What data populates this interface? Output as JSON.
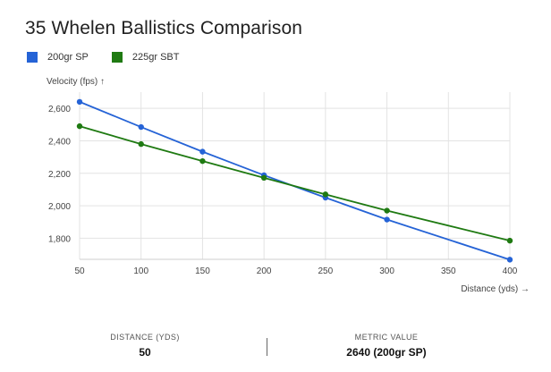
{
  "title": "35 Whelen Ballistics Comparison",
  "legend": [
    {
      "name": "200gr SP",
      "color": "#2563d6"
    },
    {
      "name": "225gr SBT",
      "color": "#1f7a12"
    }
  ],
  "axes": {
    "ylabel": "Velocity (fps) ↑",
    "xlabel": "Distance (yds) →"
  },
  "chart_data": {
    "type": "line",
    "title": "35 Whelen Ballistics Comparison",
    "xlabel": "Distance (yds)",
    "ylabel": "Velocity (fps)",
    "x": [
      50,
      100,
      150,
      200,
      250,
      300,
      400
    ],
    "x_ticks": [
      50,
      100,
      150,
      200,
      250,
      300,
      350,
      400
    ],
    "y_ticks": [
      1800,
      2000,
      2200,
      2400,
      2600
    ],
    "xlim": [
      50,
      400
    ],
    "ylim": [
      1670,
      2700
    ],
    "grid": true,
    "legend_position": "top-left",
    "series": [
      {
        "name": "200gr SP",
        "color": "#2563d6",
        "values": [
          2640,
          2485,
          2333,
          2188,
          2050,
          1915,
          1668
        ]
      },
      {
        "name": "225gr SBT",
        "color": "#1f7a12",
        "values": [
          2490,
          2380,
          2275,
          2172,
          2070,
          1970,
          1785
        ]
      }
    ]
  },
  "footer": {
    "left_label": "DISTANCE (YDS)",
    "left_value": "50",
    "right_label": "METRIC VALUE",
    "right_value": "2640 (200gr SP)"
  }
}
